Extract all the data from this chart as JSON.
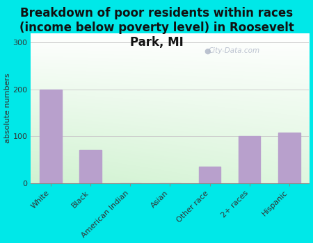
{
  "title": "Breakdown of poor residents within races\n(income below poverty level) in Roosevelt\nPark, MI",
  "categories": [
    "White",
    "Black",
    "American Indian",
    "Asian",
    "Other race",
    "2+ races",
    "Hispanic"
  ],
  "values": [
    200,
    70,
    0,
    0,
    35,
    100,
    108
  ],
  "bar_color": "#b8a0cc",
  "ylabel": "absolute numbers",
  "ylim": [
    0,
    320
  ],
  "yticks": [
    0,
    100,
    200,
    300
  ],
  "outer_bg": "#00e8e8",
  "watermark": "City-Data.com",
  "title_fontsize": 12,
  "tick_fontsize": 8,
  "ylabel_fontsize": 8
}
